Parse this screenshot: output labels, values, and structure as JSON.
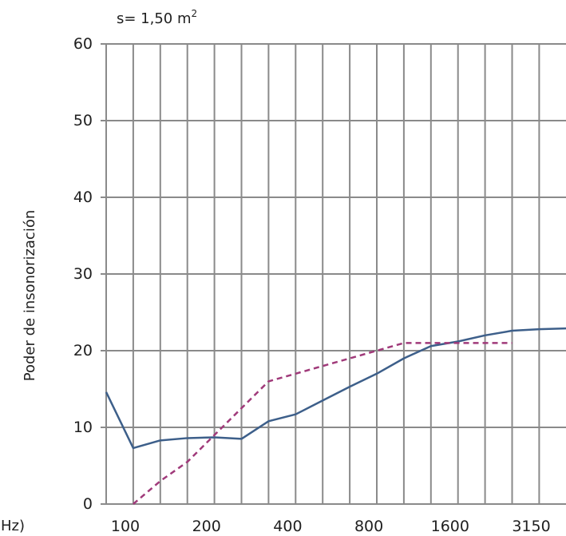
{
  "colors": {
    "grid": "#8a8a8a",
    "measured": "#3d5f8a",
    "reference": "#a03a7a",
    "text": "#1f1f1f"
  },
  "area_label": {
    "prefix": "s= 1,50 m",
    "superscript": "2"
  },
  "chart_data": {
    "type": "line",
    "ylabel": "Poder de insonorización",
    "xunit": "(Hz)",
    "ylim": [
      0,
      60
    ],
    "y_ticks": [
      "0",
      "10",
      "20",
      "30",
      "40",
      "50",
      "60"
    ],
    "x_ticks": [
      "100",
      "200",
      "400",
      "800",
      "1600",
      "3150"
    ],
    "grid": true,
    "x_scale": "one-third-octave bands",
    "series": [
      {
        "style": "solid",
        "x": [
          "100",
          "125",
          "160",
          "200",
          "250",
          "315",
          "400",
          "500",
          "630",
          "800",
          "1000",
          "1250",
          "1600",
          "2000",
          "2500",
          "3150",
          "4000",
          "5000"
        ],
        "values": [
          14.6,
          7.3,
          8.3,
          8.6,
          8.7,
          8.5,
          10.8,
          11.7,
          13.5,
          15.3,
          17.0,
          19.0,
          20.6,
          21.2,
          22.0,
          22.6,
          22.8,
          22.9
        ]
      },
      {
        "style": "dashed",
        "x": [
          "125",
          "160",
          "200",
          "250",
          "315",
          "400",
          "500",
          "630",
          "800",
          "1000",
          "1250",
          "1600",
          "2000",
          "2500",
          "3150"
        ],
        "values": [
          0.0,
          3.0,
          5.5,
          9.0,
          12.5,
          16.0,
          17.0,
          18.0,
          19.0,
          20.0,
          21.0,
          21.0,
          21.0,
          21.0,
          21.0
        ]
      }
    ]
  }
}
